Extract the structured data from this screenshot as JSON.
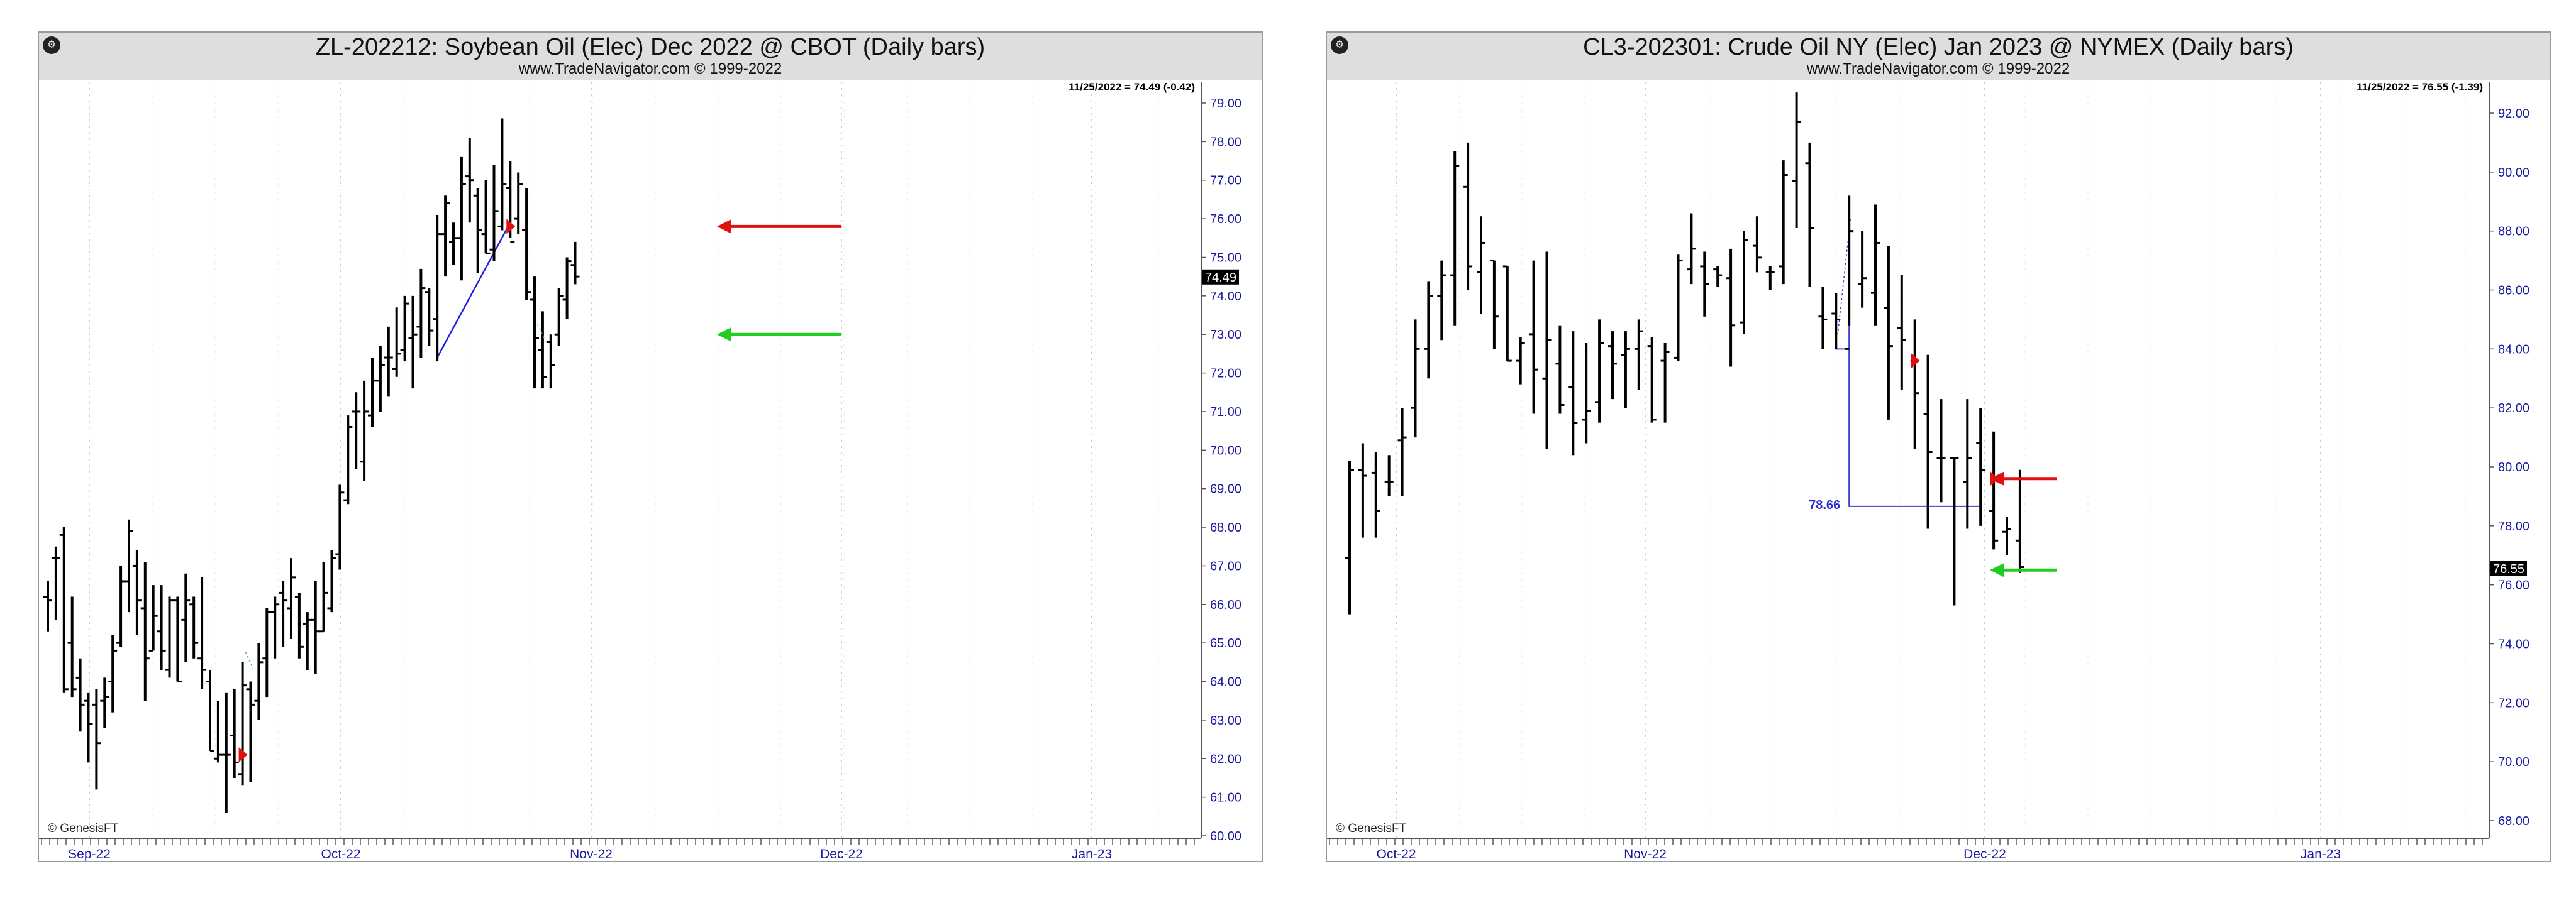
{
  "chart_data": [
    {
      "type": "bar",
      "title": "ZL-202212:  Soybean Oil (Elec) Dec 2022 @ CBOT  (Daily bars)",
      "subtitle": "www.TradeNavigator.com © 1999-2022",
      "last_label": "11/25/2022 = 74.49 (-0.42)",
      "price_tag": "74.49",
      "watermark": "© GenesisFT",
      "ylim": [
        59.5,
        79.5
      ],
      "y_ticks": [
        "79.00",
        "78.00",
        "77.00",
        "76.00",
        "75.00",
        "74.00",
        "73.00",
        "72.00",
        "71.00",
        "70.00",
        "69.00",
        "68.00",
        "67.00",
        "66.00",
        "65.00",
        "64.00",
        "63.00",
        "62.00",
        "61.00",
        "60.00"
      ],
      "x_ticks": [
        "Sep-22",
        "Oct-22",
        "Nov-22",
        "Dec-22",
        "Jan-23"
      ],
      "bars": [
        [
          66.6,
          65.3,
          66.2,
          66.1
        ],
        [
          67.5,
          65.6,
          67.2,
          67.2
        ],
        [
          68.0,
          63.7,
          67.8,
          63.8
        ],
        [
          66.2,
          63.6,
          65.0,
          63.8
        ],
        [
          64.6,
          62.7,
          64.1,
          63.4
        ],
        [
          63.7,
          61.9,
          63.5,
          62.9
        ],
        [
          63.8,
          61.2,
          63.4,
          62.4
        ],
        [
          64.1,
          62.8,
          63.5,
          63.6
        ],
        [
          65.2,
          63.2,
          64.0,
          64.8
        ],
        [
          67.0,
          64.9,
          65.0,
          66.6
        ],
        [
          68.2,
          65.8,
          66.6,
          67.9
        ],
        [
          67.4,
          65.2,
          67.0,
          66.1
        ],
        [
          67.1,
          63.5,
          65.9,
          64.6
        ],
        [
          66.5,
          64.8,
          64.8,
          65.7
        ],
        [
          66.5,
          64.3,
          65.3,
          64.8
        ],
        [
          66.2,
          64.1,
          64.3,
          66.1
        ],
        [
          66.2,
          64.0,
          66.1,
          64.0
        ],
        [
          66.8,
          64.5,
          65.6,
          66.1
        ],
        [
          66.2,
          64.6,
          66.0,
          65.0
        ],
        [
          66.7,
          63.8,
          64.6,
          64.3
        ],
        [
          64.3,
          62.2,
          64.0,
          62.2
        ],
        [
          63.5,
          61.9,
          62.0,
          62.1
        ],
        [
          63.7,
          60.6,
          62.1,
          62.1
        ],
        [
          63.8,
          61.5,
          62.6,
          61.9
        ],
        [
          64.5,
          61.3,
          61.6,
          63.9
        ],
        [
          64.0,
          61.4,
          63.8,
          63.4
        ],
        [
          65.0,
          63.0,
          63.5,
          64.5
        ],
        [
          65.9,
          63.6,
          64.6,
          65.8
        ],
        [
          66.2,
          64.6,
          65.8,
          66.0
        ],
        [
          66.6,
          64.9,
          66.3,
          66.1
        ],
        [
          67.2,
          65.1,
          65.9,
          66.7
        ],
        [
          66.3,
          64.6,
          66.2,
          64.9
        ],
        [
          65.8,
          64.3,
          65.5,
          65.6
        ],
        [
          66.6,
          64.2,
          65.6,
          65.3
        ],
        [
          67.1,
          65.3,
          65.3,
          66.3
        ],
        [
          67.4,
          65.8,
          65.9,
          67.2
        ],
        [
          69.1,
          66.9,
          67.3,
          68.9
        ],
        [
          70.9,
          68.6,
          68.7,
          70.6
        ],
        [
          71.5,
          69.5,
          71.0,
          71.0
        ],
        [
          71.8,
          69.2,
          69.7,
          71.0
        ],
        [
          72.4,
          70.6,
          70.9,
          71.8
        ],
        [
          72.7,
          71.0,
          71.8,
          72.2
        ],
        [
          73.2,
          71.4,
          72.4,
          72.4
        ],
        [
          73.7,
          71.9,
          72.1,
          72.5
        ],
        [
          74.0,
          72.3,
          72.6,
          73.8
        ],
        [
          74.0,
          71.6,
          72.9,
          73.0
        ],
        [
          74.7,
          72.4,
          73.2,
          74.2
        ],
        [
          74.2,
          72.7,
          74.1,
          73.1
        ],
        [
          76.1,
          72.3,
          73.4,
          75.6
        ],
        [
          76.6,
          74.5,
          75.6,
          76.4
        ],
        [
          75.9,
          74.8,
          75.4,
          75.5
        ],
        [
          77.6,
          74.4,
          75.5,
          76.9
        ],
        [
          78.1,
          75.9,
          77.1,
          77.0
        ],
        [
          76.8,
          74.6,
          76.6,
          75.7
        ],
        [
          77.0,
          75.1,
          75.6,
          75.1
        ],
        [
          77.4,
          74.9,
          75.2,
          76.2
        ],
        [
          78.6,
          75.7,
          75.8,
          76.9
        ],
        [
          77.5,
          75.5,
          76.8,
          75.4
        ],
        [
          77.2,
          75.6,
          76.0,
          76.9
        ],
        [
          76.8,
          73.9,
          75.7,
          74.1
        ],
        [
          74.5,
          71.6,
          73.9,
          72.9
        ],
        [
          73.6,
          71.6,
          72.6,
          71.9
        ],
        [
          73.0,
          71.6,
          72.8,
          72.2
        ],
        [
          74.2,
          72.7,
          73.0,
          74.0
        ],
        [
          75.0,
          73.4,
          73.9,
          74.9
        ],
        [
          75.4,
          74.3,
          74.8,
          74.5
        ]
      ],
      "trend_line": [
        [
          48,
          72.4
        ],
        [
          57,
          75.9
        ]
      ],
      "signals": [
        {
          "type": "red",
          "value": 75.8,
          "bar": 57
        },
        {
          "type": "red",
          "value": 62.1,
          "bar": 24
        },
        {
          "type": "green",
          "value": 73.0,
          "bar": 61
        },
        {
          "type": "green",
          "value": 64.5,
          "bar": 25
        }
      ],
      "arrows": [
        {
          "color": "red",
          "value": 75.8
        },
        {
          "color": "green",
          "value": 73.0
        }
      ]
    },
    {
      "type": "bar",
      "title": "CL3-202301:  Crude Oil NY (Elec) Jan 2023 @ NYMEX  (Daily bars)",
      "subtitle": "www.TradeNavigator.com © 1999-2022",
      "last_label": "11/25/2022 = 76.55 (-1.39)",
      "price_tag": "76.55",
      "watermark": "© GenesisFT",
      "annotation": "78.66",
      "ylim": [
        67.3,
        93.3
      ],
      "y_ticks": [
        "92.00",
        "90.00",
        "88.00",
        "86.00",
        "84.00",
        "82.00",
        "80.00",
        "78.00",
        "76.00",
        "74.00",
        "72.00",
        "70.00",
        "68.00"
      ],
      "x_ticks": [
        "Oct-22",
        "Nov-22",
        "Dec-22",
        "Jan-23"
      ],
      "bars": [
        [
          80.2,
          75.0,
          76.9,
          79.9
        ],
        [
          80.8,
          77.6,
          79.9,
          79.7
        ],
        [
          80.5,
          77.6,
          79.8,
          78.5
        ],
        [
          80.4,
          79.0,
          79.5,
          79.5
        ],
        [
          82.0,
          79.0,
          80.9,
          81.0
        ],
        [
          85.0,
          81.0,
          82.0,
          84.0
        ],
        [
          86.3,
          83.0,
          84.0,
          85.8
        ],
        [
          87.0,
          84.3,
          85.8,
          86.5
        ],
        [
          90.7,
          84.8,
          86.5,
          90.2
        ],
        [
          91.0,
          86.0,
          89.5,
          86.8
        ],
        [
          88.5,
          85.2,
          86.6,
          87.6
        ],
        [
          87.0,
          84.0,
          87.0,
          85.1
        ],
        [
          86.8,
          83.6,
          86.8,
          83.6
        ],
        [
          84.4,
          82.8,
          83.6,
          84.2
        ],
        [
          87.0,
          81.8,
          84.5,
          83.3
        ],
        [
          87.3,
          80.6,
          83.0,
          84.3
        ],
        [
          84.8,
          81.8,
          83.5,
          82.1
        ],
        [
          84.6,
          80.4,
          82.7,
          81.5
        ],
        [
          84.2,
          80.8,
          81.6,
          81.9
        ],
        [
          85.0,
          81.5,
          82.2,
          84.2
        ],
        [
          84.6,
          82.3,
          84.1,
          83.5
        ],
        [
          84.6,
          82.0,
          83.8,
          84.0
        ],
        [
          85.0,
          82.6,
          84.0,
          84.6
        ],
        [
          84.4,
          81.5,
          84.1,
          81.6
        ],
        [
          84.2,
          81.5,
          83.6,
          83.9
        ],
        [
          87.2,
          83.6,
          83.7,
          87.0
        ],
        [
          88.6,
          86.2,
          86.7,
          87.4
        ],
        [
          87.3,
          85.1,
          86.8,
          86.2
        ],
        [
          86.8,
          86.1,
          86.7,
          86.5
        ],
        [
          87.4,
          83.4,
          86.4,
          84.8
        ],
        [
          88.0,
          84.5,
          84.9,
          87.7
        ],
        [
          88.5,
          86.6,
          87.5,
          87.1
        ],
        [
          86.8,
          86.0,
          86.6,
          86.6
        ],
        [
          90.4,
          86.2,
          86.8,
          89.9
        ],
        [
          92.7,
          88.1,
          89.7,
          91.7
        ],
        [
          91.0,
          86.1,
          90.3,
          88.1
        ],
        [
          86.1,
          84.0,
          85.1,
          85.0
        ],
        [
          85.9,
          84.0,
          85.2,
          85.0
        ],
        [
          89.2,
          84.8,
          84.0,
          88.0
        ],
        [
          88.0,
          85.4,
          86.2,
          86.4
        ],
        [
          88.9,
          84.8,
          85.9,
          87.6
        ],
        [
          87.5,
          81.6,
          85.4,
          84.1
        ],
        [
          86.5,
          82.6,
          84.7,
          84.3
        ],
        [
          85.0,
          80.6,
          83.6,
          82.5
        ],
        [
          83.8,
          77.9,
          81.8,
          80.5
        ],
        [
          82.3,
          78.8,
          80.3,
          80.3
        ],
        [
          80.3,
          75.3,
          80.3,
          80.3
        ],
        [
          82.3,
          77.9,
          79.5,
          80.3
        ],
        [
          82.0,
          78.0,
          80.8,
          79.9
        ],
        [
          81.2,
          77.2,
          78.5,
          77.5
        ],
        [
          78.3,
          77.0,
          77.8,
          77.9
        ],
        [
          79.9,
          76.4,
          77.5,
          76.6
        ]
      ],
      "annotation_box": {
        "x_start_bar": 38,
        "x_end_bar": 48,
        "y_top": 88.4,
        "y_bottom": 78.66
      },
      "signals": [
        {
          "type": "red",
          "value": 83.6,
          "bar": 43
        },
        {
          "type": "red",
          "value": 79.6,
          "bar": 49
        }
      ],
      "arrows": [
        {
          "color": "red",
          "value": 79.6
        },
        {
          "color": "green",
          "value": 76.5
        }
      ]
    }
  ]
}
